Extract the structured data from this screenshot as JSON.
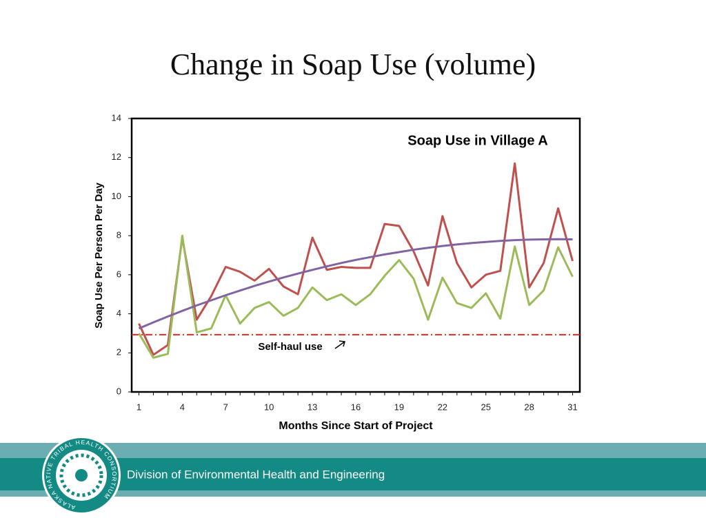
{
  "title": "Change in Soap Use (volume)",
  "chart_data": {
    "type": "line",
    "title": "Soap Use in Village A",
    "x_label": "Months Since Start of Project",
    "y_label": "Soap Use Per Person Per Day",
    "x": [
      1,
      2,
      3,
      4,
      5,
      6,
      7,
      8,
      9,
      10,
      11,
      12,
      13,
      14,
      15,
      16,
      17,
      18,
      19,
      20,
      21,
      22,
      23,
      24,
      25,
      26,
      27,
      28,
      29,
      30,
      31
    ],
    "xlim": [
      0.5,
      31.5
    ],
    "xticks": [
      1,
      4,
      7,
      10,
      13,
      16,
      19,
      22,
      25,
      28,
      31
    ],
    "ylim": [
      0,
      14
    ],
    "yticks": [
      0,
      2,
      4,
      6,
      8,
      10,
      12,
      14
    ],
    "series": [
      {
        "color": "#c0504d",
        "values": [
          3.5,
          1.9,
          2.4,
          7.9,
          3.7,
          4.9,
          6.4,
          6.15,
          5.7,
          6.3,
          5.4,
          5.0,
          7.9,
          6.25,
          6.4,
          6.35,
          6.35,
          8.6,
          8.5,
          7.2,
          5.45,
          9.0,
          6.6,
          5.35,
          6.0,
          6.2,
          11.7,
          5.35,
          6.6,
          9.4,
          6.7
        ]
      },
      {
        "color": "#9bbb59",
        "values": [
          3.0,
          1.75,
          1.95,
          8.0,
          3.05,
          3.25,
          4.95,
          3.5,
          4.3,
          4.6,
          3.9,
          4.3,
          5.35,
          4.7,
          5.0,
          4.45,
          5.0,
          5.95,
          6.75,
          5.8,
          3.7,
          5.85,
          4.55,
          4.3,
          5.05,
          3.75,
          7.45,
          4.45,
          5.2,
          7.4,
          5.9
        ]
      },
      {
        "color": "#8064a2",
        "values": [
          3.25,
          3.56,
          3.86,
          4.15,
          4.43,
          4.69,
          4.95,
          5.19,
          5.43,
          5.65,
          5.86,
          6.06,
          6.25,
          6.43,
          6.6,
          6.76,
          6.9,
          7.04,
          7.16,
          7.28,
          7.38,
          7.47,
          7.55,
          7.62,
          7.68,
          7.73,
          7.77,
          7.8,
          7.81,
          7.82,
          7.81
        ]
      }
    ],
    "reference_line": {
      "value": 2.93,
      "color": "#e8281e",
      "label": "Self-haul use"
    }
  },
  "footer": {
    "organization": "Division of Environmental Health and Engineering",
    "logo_text": "ALASKA NATIVE TRIBAL HEALTH CONSORTIUM"
  }
}
